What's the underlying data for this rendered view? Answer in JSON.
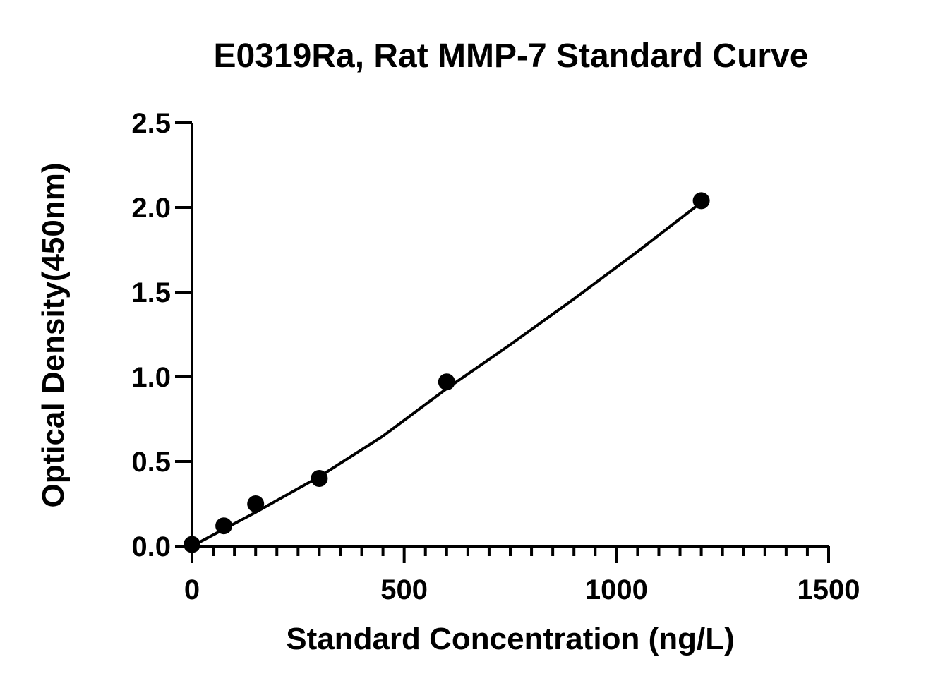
{
  "chart_data": {
    "type": "scatter",
    "title": "E0319Ra, Rat MMP-7 Standard Curve",
    "xlabel": "Standard Concentration (ng/L)",
    "ylabel": "Optical Density(450nm)",
    "xlim": [
      0,
      1500
    ],
    "ylim": [
      0,
      2.5
    ],
    "x_ticks": [
      "0",
      "500",
      "1000",
      "1500"
    ],
    "y_ticks": [
      "0.0",
      "0.5",
      "1.0",
      "1.5",
      "2.0",
      "2.5"
    ],
    "grid": false,
    "legend": "none",
    "series": [
      {
        "x": [
          0,
          75,
          150,
          300,
          600,
          1200
        ],
        "y": [
          0.01,
          0.12,
          0.25,
          0.4,
          0.97,
          2.04
        ]
      }
    ],
    "fit_curve": {
      "x": [
        0,
        150,
        300,
        450,
        600,
        750,
        900,
        1050,
        1200
      ],
      "y": [
        0.0,
        0.2,
        0.41,
        0.65,
        0.93,
        1.19,
        1.46,
        1.74,
        2.03
      ]
    },
    "colors": {
      "marker": "#000000",
      "line": "#000000",
      "axis": "#000000"
    }
  }
}
